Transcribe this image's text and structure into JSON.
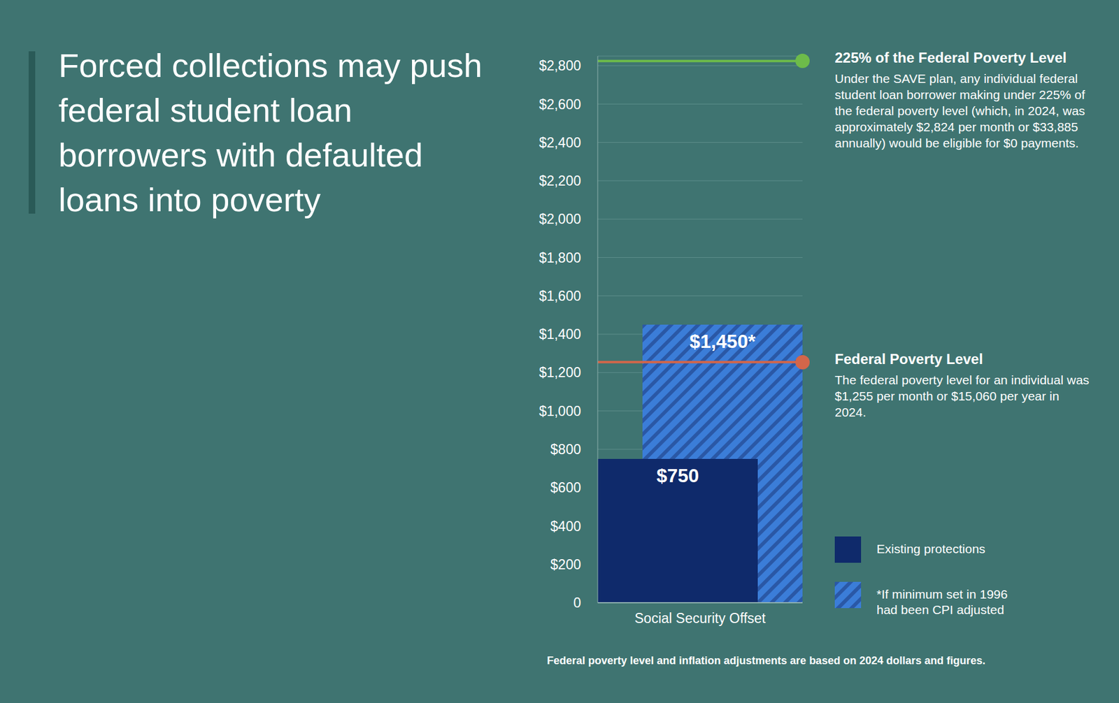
{
  "chart_data": {
    "type": "bar",
    "title": "Forced collections may push federal student loan borrowers with defaulted loans into poverty",
    "categories": [
      "Social Security Offset"
    ],
    "series": [
      {
        "name": "Existing protections",
        "color": "#0f2a6b",
        "values": [
          750
        ],
        "value_labels": [
          "$750"
        ]
      },
      {
        "name": "*If minimum set in 1996 had been CPI adjusted",
        "color": "#3b7dd8",
        "values": [
          1450
        ],
        "value_labels": [
          "$1,450*"
        ]
      }
    ],
    "ylim": [
      0,
      2850
    ],
    "yticks": [
      0,
      {
        "value": 200,
        "label": "$200"
      },
      {
        "value": 400,
        "label": "$400"
      },
      {
        "value": 600,
        "label": "$600"
      },
      {
        "value": 800,
        "label": "$800"
      },
      {
        "value": 1000,
        "label": "$1,000"
      },
      {
        "value": 1200,
        "label": "$1,200"
      },
      {
        "value": 1400,
        "label": "$1,400"
      },
      {
        "value": 1600,
        "label": "$1,600"
      },
      {
        "value": 1800,
        "label": "$1,800"
      },
      {
        "value": 2000,
        "label": "$2,000"
      },
      {
        "value": 2200,
        "label": "$2,200"
      },
      {
        "value": 2400,
        "label": "$2,400"
      },
      {
        "value": 2600,
        "label": "$2,600"
      },
      {
        "value": 2800,
        "label": "$2,800"
      }
    ],
    "grid": true,
    "data_labels": true,
    "reference_lines": [
      {
        "value": 2824,
        "label": "225% of the Federal Poverty Level",
        "text": "Under the SAVE plan, any individual federal student loan borrower making under 225% of the federal poverty level (which, in 2024, was approximately $2,824 per month or $33,885 annually) would be eligible for $0 payments.",
        "color": "#6dbb4a"
      },
      {
        "value": 1255,
        "label": "Federal Poverty Level",
        "text": "The federal poverty level for an individual was $1,255 per month or $15,060 per year in 2024.",
        "color": "#d2664a"
      }
    ],
    "footnote": "Federal poverty level and inflation adjustments are based on 2024 dollars and figures."
  }
}
